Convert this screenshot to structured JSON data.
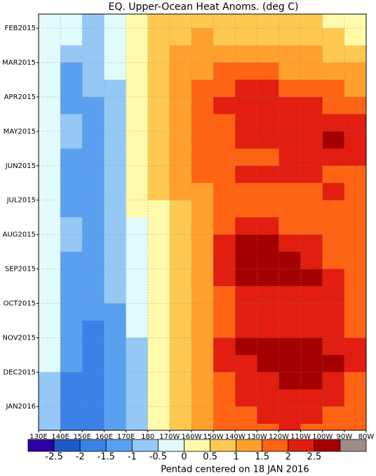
{
  "chart_data": {
    "type": "heatmap",
    "title": "EQ. Upper-Ocean Heat Anoms. (deg C)",
    "footer": "Pentad centered on 18 JAN 2016",
    "x": [
      135,
      145,
      155,
      165,
      175,
      185,
      195,
      205,
      215,
      225,
      235,
      245,
      255,
      265,
      275
    ],
    "y": [
      -0.25,
      0.25,
      0.75,
      1.25,
      1.75,
      2.25,
      2.75,
      3.25,
      3.75,
      4.25,
      4.75,
      5.25,
      5.75,
      6.25,
      6.75,
      7.25,
      7.75,
      8.25,
      8.75,
      9.25,
      9.75,
      10.25,
      10.75,
      11.25,
      11.75
    ],
    "values": [
      [
        -0.3,
        -0.2,
        -0.7,
        -0.2,
        0.4,
        0.8,
        0.8,
        0.9,
        0.8,
        0.7,
        0.7,
        0.6,
        0.7,
        0.3,
        0.3
      ],
      [
        -0.3,
        -0.4,
        -0.8,
        -0.3,
        0.4,
        0.9,
        0.9,
        1.0,
        0.9,
        0.8,
        0.8,
        0.8,
        0.8,
        0.6,
        0.4
      ],
      [
        -0.4,
        -0.8,
        -0.9,
        -0.4,
        0.3,
        0.9,
        1.1,
        1.2,
        1.2,
        1.2,
        1.1,
        1.0,
        1.0,
        0.9,
        0.7
      ],
      [
        -0.5,
        -1.2,
        -1.0,
        -0.5,
        0.3,
        0.9,
        1.2,
        1.4,
        1.6,
        1.7,
        1.6,
        1.4,
        1.3,
        1.2,
        1.0
      ],
      [
        -0.4,
        -1.3,
        -1.0,
        -0.6,
        0.2,
        0.8,
        1.2,
        1.6,
        1.9,
        2.2,
        2.1,
        1.9,
        1.7,
        1.6,
        1.4
      ],
      [
        -0.4,
        -1.1,
        -1.1,
        -0.6,
        0.2,
        0.8,
        1.3,
        1.7,
        2.0,
        2.3,
        2.2,
        2.1,
        2.0,
        1.9,
        1.7
      ],
      [
        -0.4,
        -0.9,
        -1.1,
        -0.7,
        0.1,
        0.7,
        1.4,
        1.8,
        1.9,
        2.1,
        2.2,
        2.2,
        2.1,
        2.2,
        2.0
      ],
      [
        -0.4,
        -0.8,
        -1.1,
        -0.6,
        0.1,
        0.7,
        1.3,
        1.7,
        1.9,
        2.0,
        2.0,
        2.0,
        2.1,
        2.6,
        2.4
      ],
      [
        -0.4,
        -1.1,
        -1.2,
        -0.7,
        0.1,
        0.7,
        1.3,
        1.6,
        1.8,
        1.9,
        1.9,
        2.0,
        2.1,
        2.3,
        2.0
      ],
      [
        -0.5,
        -1.4,
        -1.3,
        -0.8,
        0.0,
        0.6,
        1.2,
        1.5,
        1.7,
        2.1,
        2.1,
        2.0,
        2.0,
        1.9,
        1.8
      ],
      [
        -0.5,
        -1.2,
        -1.2,
        -0.8,
        0.1,
        0.5,
        1.0,
        1.4,
        1.6,
        1.9,
        1.9,
        1.9,
        1.9,
        2.1,
        1.8
      ],
      [
        -0.5,
        -1.1,
        -1.1,
        -0.7,
        0.0,
        0.4,
        0.9,
        1.3,
        1.6,
        1.8,
        1.9,
        1.9,
        1.9,
        1.8,
        1.7
      ],
      [
        -0.4,
        -1.0,
        -1.1,
        -0.7,
        -0.1,
        0.4,
        0.8,
        1.3,
        1.7,
        2.0,
        2.0,
        1.9,
        1.8,
        1.7,
        1.8
      ],
      [
        -0.4,
        -1.0,
        -1.2,
        -0.7,
        -0.2,
        0.3,
        0.8,
        1.4,
        2.0,
        2.6,
        2.7,
        2.4,
        2.0,
        1.8,
        1.7
      ],
      [
        -0.4,
        -1.1,
        -1.2,
        -0.8,
        -0.2,
        0.3,
        0.8,
        1.4,
        2.1,
        2.7,
        2.8,
        2.7,
        2.3,
        1.9,
        1.8
      ],
      [
        -0.4,
        -1.2,
        -1.3,
        -0.9,
        -0.3,
        0.2,
        0.8,
        1.3,
        2.0,
        2.5,
        2.6,
        2.7,
        2.6,
        2.0,
        1.8
      ],
      [
        -0.4,
        -1.2,
        -1.4,
        -1.0,
        -0.3,
        0.2,
        0.7,
        1.2,
        1.9,
        2.2,
        2.3,
        2.2,
        2.3,
        2.0,
        1.9
      ],
      [
        -0.4,
        -1.3,
        -1.5,
        -1.1,
        -0.4,
        0.2,
        0.7,
        1.2,
        1.8,
        2.1,
        2.2,
        2.1,
        2.1,
        2.0,
        1.9
      ],
      [
        -0.4,
        -1.3,
        -1.6,
        -1.2,
        -0.5,
        0.1,
        0.7,
        1.3,
        1.9,
        2.2,
        2.3,
        2.2,
        2.2,
        2.1,
        1.9
      ],
      [
        -0.4,
        -1.4,
        -1.7,
        -1.3,
        -0.6,
        0.1,
        0.7,
        1.4,
        2.1,
        2.6,
        2.7,
        2.7,
        2.6,
        2.4,
        2.0
      ],
      [
        -0.5,
        -1.5,
        -1.7,
        -1.3,
        -0.6,
        0.1,
        0.6,
        1.3,
        2.0,
        2.4,
        2.6,
        2.7,
        2.7,
        2.6,
        2.0
      ],
      [
        -0.6,
        -1.6,
        -1.8,
        -1.4,
        -0.6,
        0.0,
        0.6,
        1.2,
        1.9,
        2.2,
        2.3,
        2.5,
        2.6,
        2.3,
        1.9
      ],
      [
        -0.6,
        -1.6,
        -1.8,
        -1.5,
        -0.7,
        0.0,
        0.5,
        1.1,
        1.7,
        2.1,
        2.2,
        2.2,
        2.2,
        2.0,
        1.8
      ],
      [
        -0.6,
        -1.7,
        -1.7,
        -1.5,
        -0.6,
        0.1,
        0.5,
        1.0,
        1.5,
        1.8,
        2.0,
        2.0,
        2.0,
        1.8,
        1.6
      ],
      [
        -0.6,
        -1.6,
        -1.6,
        -1.4,
        -0.6,
        0.1,
        0.5,
        1.0,
        1.5,
        1.8,
        1.9,
        2.0,
        1.9,
        1.8,
        1.6
      ]
    ],
    "xlim": [
      130,
      280
    ],
    "xticks": [
      {
        "value": 130,
        "label": "130E"
      },
      {
        "value": 140,
        "label": "140E"
      },
      {
        "value": 150,
        "label": "150E"
      },
      {
        "value": 160,
        "label": "160E"
      },
      {
        "value": 170,
        "label": "170E"
      },
      180,
      {
        "value": 190,
        "label": "170W"
      },
      {
        "value": 200,
        "label": "160W"
      },
      {
        "value": 210,
        "label": "150W"
      },
      {
        "value": 220,
        "label": "140W"
      },
      {
        "value": 230,
        "label": "130W"
      },
      {
        "value": 240,
        "label": "120W"
      },
      {
        "value": 250,
        "label": "110W"
      },
      {
        "value": 260,
        "label": "100W"
      },
      {
        "value": 270,
        "label": "90W"
      },
      {
        "value": 280,
        "label": "80W"
      }
    ],
    "ylim": [
      -0.41,
      11.69
    ],
    "yticks": [
      {
        "value": 0,
        "label": "FEB2015"
      },
      {
        "value": 1,
        "label": "MAR2015"
      },
      {
        "value": 2,
        "label": "APR2015"
      },
      {
        "value": 3,
        "label": "MAY2015"
      },
      {
        "value": 4,
        "label": "JUN2015"
      },
      {
        "value": 5,
        "label": "JUL2015"
      },
      {
        "value": 6,
        "label": "AUG2015"
      },
      {
        "value": 7,
        "label": "SEP2015"
      },
      {
        "value": 8,
        "label": "OCT2015"
      },
      {
        "value": 9,
        "label": "NOV2015"
      },
      {
        "value": 10,
        "label": "DEC2015"
      },
      {
        "value": 11,
        "label": "JAN2016"
      }
    ],
    "grid": true,
    "levels": [
      -2.5,
      -2,
      -1.5,
      -1,
      -0.5,
      0,
      0.5,
      1,
      1.5,
      2,
      2.5
    ],
    "colors": [
      "#2d00a5",
      "#1e5ac8",
      "#3c82e6",
      "#5aa0f0",
      "#96c8f5",
      "#e1fafa",
      "#fffaaa",
      "#ffc850",
      "#ffa02d",
      "#ff6414",
      "#e11e0f",
      "#a50000",
      "#a08c87"
    ]
  }
}
